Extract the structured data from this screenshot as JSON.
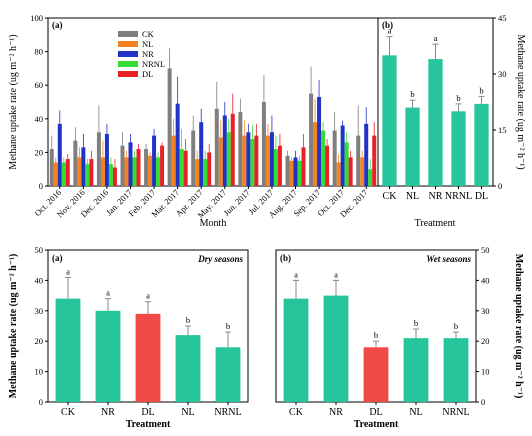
{
  "colors": {
    "CK": "#7f7f7f",
    "NL": "#f58220",
    "NR": "#1f33c6",
    "NRNL": "#33dd33",
    "DL": "#e8202a",
    "teal": "#26c59b",
    "red": "#f04a46",
    "errbar": "#888888"
  },
  "chart_data": [
    {
      "panel": "top-left",
      "type": "bar",
      "panel_label": "(a)",
      "xlabel": "Month",
      "ylabel": "Methane uptake rate (ug  m⁻²  h⁻¹)",
      "ylim": [
        0,
        100
      ],
      "yticks": [
        "0",
        "20",
        "40",
        "60",
        "80",
        "100"
      ],
      "legend_position": "top-center",
      "categories": [
        "Oct. 2016",
        "Nov. 2016",
        "Dec. 2016",
        "Jan. 2017",
        "Feb. 2017",
        "Mar. 2017",
        "Apr. 2017",
        "May. 2017",
        "Jun. 2017",
        "Jul. 2017",
        "Aug. 2017",
        "Sep. 2017",
        "Oct. 2017",
        "Dec. 2017"
      ],
      "series": [
        {
          "name": "CK",
          "values": [
            22,
            27,
            32,
            24,
            22,
            70,
            33,
            46,
            44,
            50,
            18,
            55,
            33,
            30
          ],
          "errors": [
            8,
            8,
            16,
            8,
            3,
            12,
            9,
            16,
            8,
            16,
            3,
            16,
            11,
            18
          ]
        },
        {
          "name": "NL",
          "values": [
            14,
            17,
            17,
            17,
            18,
            30,
            16,
            29,
            30,
            30,
            15,
            38,
            14,
            17
          ],
          "errors": [
            3,
            6,
            10,
            4,
            2,
            10,
            5,
            10,
            9,
            7,
            2,
            14,
            5,
            4
          ]
        },
        {
          "name": "NR",
          "values": [
            37,
            23,
            31,
            26,
            30,
            49,
            38,
            42,
            32,
            32,
            17,
            53,
            36,
            37
          ],
          "errors": [
            8,
            8,
            6,
            5,
            4,
            16,
            8,
            8,
            5,
            10,
            4,
            10,
            3,
            10
          ]
        },
        {
          "name": "NRNL",
          "values": [
            14,
            13,
            13,
            17,
            17,
            22,
            16,
            32,
            28,
            22,
            15,
            33,
            26,
            10
          ],
          "errors": [
            3,
            3,
            4,
            4,
            3,
            12,
            5,
            8,
            8,
            8,
            3,
            5,
            6,
            6
          ]
        },
        {
          "name": "DL",
          "values": [
            16,
            16,
            11,
            22,
            24,
            21,
            20,
            43,
            30,
            24,
            23,
            24,
            17,
            30
          ],
          "errors": [
            3,
            5,
            5,
            3,
            2,
            7,
            5,
            12,
            7,
            7,
            8,
            4,
            4,
            8
          ]
        }
      ]
    },
    {
      "panel": "top-right",
      "type": "bar",
      "panel_label": "(b)",
      "xlabel": "Treatment",
      "ylabel": "Methane uptake rate (ug  m⁻²  h⁻¹)",
      "ylim": [
        0,
        45
      ],
      "yticks": [
        "0",
        "15",
        "30",
        "45"
      ],
      "categories": [
        "CK",
        "NL",
        "NR",
        "NRNL",
        "DL"
      ],
      "values": [
        35,
        21,
        34,
        20,
        22
      ],
      "errors": [
        5,
        2,
        4,
        2,
        2
      ],
      "letters": [
        "a",
        "b",
        "a",
        "b",
        "b"
      ],
      "colors": [
        "teal",
        "teal",
        "teal",
        "teal",
        "teal"
      ]
    },
    {
      "panel": "bottom-left",
      "type": "bar",
      "panel_label": "(a)",
      "title": "Dry seasons",
      "xlabel": "Treatment",
      "ylabel": "Methane uptake rate (ug  m⁻²  h⁻¹)",
      "ylim": [
        0,
        50
      ],
      "yticks": [
        "0",
        "10",
        "20",
        "30",
        "40",
        "50"
      ],
      "categories": [
        "CK",
        "NR",
        "DL",
        "NL",
        "NRNL"
      ],
      "values": [
        34,
        30,
        29,
        22,
        18
      ],
      "errors": [
        7,
        4,
        4,
        3,
        5
      ],
      "letters": [
        "a",
        "a",
        "a",
        "b",
        "b"
      ],
      "colors": [
        "teal",
        "teal",
        "red",
        "teal",
        "teal"
      ]
    },
    {
      "panel": "bottom-right",
      "type": "bar",
      "panel_label": "(b)",
      "title": "Wet seasons",
      "xlabel": "Treatment",
      "ylabel": "Methane uptake rate (ug  m⁻²  h⁻¹)",
      "ylim": [
        0,
        50
      ],
      "yticks": [
        "0",
        "10",
        "20",
        "30",
        "40",
        "50"
      ],
      "categories": [
        "CK",
        "NR",
        "DL",
        "NL",
        "NRNL"
      ],
      "values": [
        34,
        35,
        18,
        21,
        21
      ],
      "errors": [
        6,
        5,
        2,
        3,
        2
      ],
      "letters": [
        "a",
        "a",
        "b",
        "b",
        "b"
      ],
      "colors": [
        "teal",
        "teal",
        "red",
        "teal",
        "teal"
      ]
    }
  ]
}
